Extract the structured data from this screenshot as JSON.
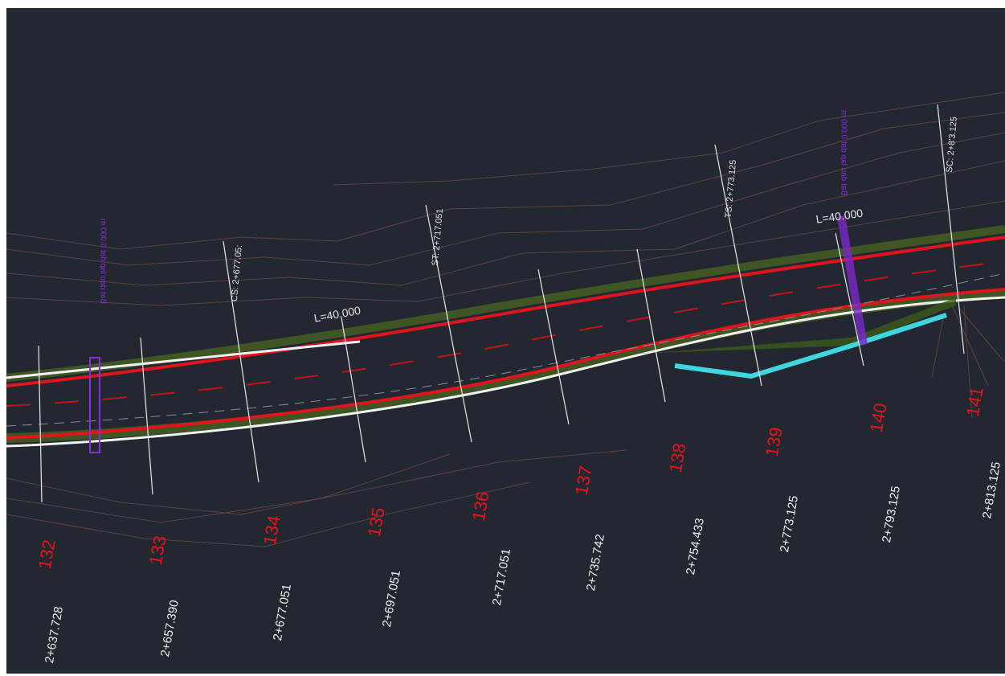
{
  "stations": [
    {
      "number": "132",
      "chainage": "2+637.728"
    },
    {
      "number": "133",
      "chainage": "2+657.390"
    },
    {
      "number": "134",
      "chainage": "2+677.051"
    },
    {
      "number": "135",
      "chainage": "2+697.051"
    },
    {
      "number": "136",
      "chainage": "2+717.051"
    },
    {
      "number": "137",
      "chainage": "2+735.742"
    },
    {
      "number": "138",
      "chainage": "2+754.433"
    },
    {
      "number": "139",
      "chainage": "2+773.125"
    },
    {
      "number": "140",
      "chainage": "2+793.125"
    },
    {
      "number": "141",
      "chainage": "2+813.125"
    }
  ],
  "annotations": {
    "cs": "CS: 2+677.05:",
    "st": "ST: 2+717.051",
    "ts": "TS: 2+773.125",
    "sc": "SC: 2+8'3.125",
    "length_left": "L=40.000",
    "length_right": "L=40.000",
    "marker_left": "Bat dau lap dat 0.000 m",
    "marker_right": "Bat dau lap dat 0.000 m"
  }
}
